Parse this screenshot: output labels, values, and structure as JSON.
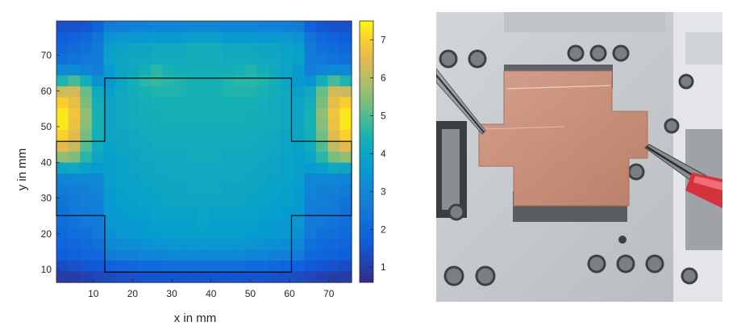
{
  "chart_data": {
    "type": "heatmap",
    "xlabel": "x in mm",
    "ylabel": "y in mm",
    "xlim": [
      0.6,
      75.8
    ],
    "ylim": [
      6.4,
      79.6
    ],
    "x_ticks": [
      10,
      20,
      30,
      40,
      50,
      60,
      70
    ],
    "y_ticks": [
      10,
      20,
      30,
      40,
      50,
      60,
      70
    ],
    "grid": false,
    "colormap": "parula",
    "colorbar": {
      "ticks": [
        1,
        2,
        3,
        4,
        5,
        6,
        7
      ],
      "range": [
        0.6,
        7.5
      ]
    },
    "grid_size": {
      "cols": 25,
      "rows": 24
    },
    "values": [
      [
        1.4,
        1.4,
        1.5,
        1.8,
        2.6,
        2.7,
        2.8,
        2.8,
        2.9,
        2.9,
        2.9,
        3.0,
        3.0,
        3.0,
        2.9,
        2.9,
        2.9,
        2.8,
        2.8,
        2.7,
        2.6,
        1.8,
        1.5,
        1.4,
        1.4
      ],
      [
        1.7,
        1.8,
        2.0,
        2.4,
        3.4,
        3.5,
        3.6,
        3.6,
        3.7,
        3.7,
        3.7,
        3.8,
        3.8,
        3.8,
        3.7,
        3.7,
        3.7,
        3.6,
        3.6,
        3.5,
        3.4,
        2.4,
        2.0,
        1.8,
        1.7
      ],
      [
        2.0,
        2.1,
        2.3,
        2.6,
        3.8,
        3.9,
        4.0,
        4.0,
        4.1,
        4.1,
        4.1,
        4.2,
        4.2,
        4.2,
        4.1,
        4.1,
        4.1,
        4.0,
        4.0,
        3.9,
        3.8,
        2.6,
        2.3,
        2.1,
        2.0
      ],
      [
        2.3,
        2.4,
        2.5,
        2.6,
        3.9,
        4.0,
        4.1,
        4.1,
        4.2,
        4.2,
        4.2,
        4.3,
        4.3,
        4.3,
        4.2,
        4.2,
        4.2,
        4.1,
        4.1,
        4.0,
        3.9,
        2.6,
        2.5,
        2.4,
        2.3
      ],
      [
        3.0,
        3.1,
        2.9,
        2.7,
        3.7,
        4.0,
        4.1,
        4.3,
        4.6,
        4.4,
        4.3,
        4.3,
        4.3,
        4.3,
        4.3,
        4.4,
        4.5,
        4.3,
        4.1,
        4.0,
        3.7,
        2.7,
        2.9,
        3.1,
        3.0
      ],
      [
        4.5,
        4.9,
        4.3,
        3.4,
        3.6,
        4.0,
        4.3,
        4.6,
        4.7,
        4.6,
        4.5,
        4.4,
        4.4,
        4.4,
        4.5,
        4.6,
        4.6,
        4.5,
        4.3,
        4.0,
        3.6,
        3.4,
        4.3,
        4.9,
        4.5
      ],
      [
        6.2,
        6.3,
        5.2,
        4.1,
        3.8,
        4.1,
        4.3,
        4.4,
        4.5,
        4.5,
        4.5,
        4.4,
        4.4,
        4.4,
        4.5,
        4.5,
        4.5,
        4.4,
        4.3,
        4.1,
        3.8,
        4.1,
        5.2,
        6.3,
        6.2
      ],
      [
        7.0,
        6.6,
        5.4,
        4.3,
        4.0,
        4.1,
        4.2,
        4.3,
        4.4,
        4.4,
        4.4,
        4.4,
        4.4,
        4.4,
        4.4,
        4.4,
        4.4,
        4.3,
        4.2,
        4.1,
        4.0,
        4.3,
        5.4,
        6.6,
        7.0
      ],
      [
        7.3,
        6.8,
        5.6,
        4.4,
        4.0,
        4.1,
        4.2,
        4.3,
        4.3,
        4.4,
        4.4,
        4.4,
        4.4,
        4.4,
        4.4,
        4.4,
        4.3,
        4.3,
        4.2,
        4.1,
        4.0,
        4.4,
        5.6,
        6.8,
        7.3
      ],
      [
        7.3,
        6.7,
        5.5,
        4.4,
        4.0,
        4.1,
        4.2,
        4.2,
        4.3,
        4.3,
        4.3,
        4.3,
        4.3,
        4.3,
        4.3,
        4.3,
        4.3,
        4.2,
        4.2,
        4.1,
        4.0,
        4.4,
        5.5,
        6.7,
        7.3
      ],
      [
        7.0,
        6.5,
        5.3,
        4.3,
        4.0,
        4.0,
        4.1,
        4.2,
        4.2,
        4.3,
        4.3,
        4.3,
        4.3,
        4.3,
        4.3,
        4.3,
        4.2,
        4.2,
        4.1,
        4.0,
        4.0,
        4.3,
        5.3,
        6.5,
        7.0
      ],
      [
        6.5,
        6.1,
        5.0,
        4.2,
        3.9,
        4.0,
        4.1,
        4.1,
        4.2,
        4.2,
        4.2,
        4.2,
        4.2,
        4.2,
        4.2,
        4.2,
        4.2,
        4.1,
        4.1,
        4.0,
        3.9,
        4.2,
        5.0,
        6.1,
        6.5
      ],
      [
        5.6,
        5.4,
        4.6,
        4.0,
        3.8,
        3.9,
        4.0,
        4.1,
        4.1,
        4.1,
        4.1,
        4.2,
        4.2,
        4.2,
        4.1,
        4.1,
        4.1,
        4.1,
        4.0,
        3.9,
        3.8,
        4.0,
        4.6,
        5.4,
        5.6
      ],
      [
        4.0,
        4.1,
        3.8,
        3.6,
        3.8,
        3.9,
        4.0,
        4.0,
        4.1,
        4.1,
        4.1,
        4.1,
        4.1,
        4.1,
        4.1,
        4.1,
        4.1,
        4.0,
        4.0,
        3.9,
        3.8,
        3.6,
        3.8,
        4.1,
        4.0
      ],
      [
        2.9,
        3.0,
        3.0,
        3.0,
        3.8,
        3.9,
        3.9,
        4.0,
        4.0,
        4.1,
        4.1,
        4.1,
        4.1,
        4.1,
        4.1,
        4.1,
        4.0,
        4.0,
        3.9,
        3.9,
        3.8,
        3.0,
        3.0,
        3.0,
        2.9
      ],
      [
        2.6,
        2.7,
        2.8,
        2.9,
        3.7,
        3.8,
        3.9,
        3.9,
        4.0,
        4.0,
        4.0,
        4.1,
        4.1,
        4.1,
        4.0,
        4.0,
        4.0,
        3.9,
        3.9,
        3.8,
        3.7,
        2.9,
        2.8,
        2.7,
        2.6
      ],
      [
        2.4,
        2.6,
        2.7,
        2.8,
        3.7,
        3.8,
        3.8,
        3.9,
        3.9,
        4.0,
        4.0,
        4.0,
        4.0,
        4.0,
        4.0,
        4.0,
        3.9,
        3.9,
        3.8,
        3.8,
        3.7,
        2.8,
        2.7,
        2.6,
        2.4
      ],
      [
        2.3,
        2.5,
        2.6,
        2.7,
        3.6,
        3.7,
        3.8,
        3.8,
        3.9,
        3.9,
        3.9,
        3.9,
        4.0,
        3.9,
        3.9,
        3.9,
        3.9,
        3.8,
        3.8,
        3.7,
        3.6,
        2.7,
        2.6,
        2.5,
        2.3
      ],
      [
        2.2,
        2.4,
        2.5,
        2.6,
        3.5,
        3.6,
        3.7,
        3.7,
        3.8,
        3.8,
        3.8,
        3.8,
        3.9,
        3.8,
        3.8,
        3.8,
        3.8,
        3.7,
        3.7,
        3.6,
        3.5,
        2.6,
        2.5,
        2.4,
        2.2
      ],
      [
        2.1,
        2.2,
        2.3,
        2.5,
        3.3,
        3.5,
        3.6,
        3.7,
        3.7,
        3.8,
        3.8,
        3.8,
        3.8,
        3.8,
        3.8,
        3.8,
        3.7,
        3.7,
        3.6,
        3.5,
        3.3,
        2.5,
        2.3,
        2.2,
        2.1
      ],
      [
        1.9,
        2.0,
        2.1,
        2.3,
        3.0,
        3.2,
        3.3,
        3.4,
        3.5,
        3.5,
        3.5,
        3.5,
        3.6,
        3.5,
        3.5,
        3.5,
        3.5,
        3.4,
        3.3,
        3.2,
        3.0,
        2.3,
        2.1,
        2.0,
        1.9
      ],
      [
        1.7,
        1.8,
        1.9,
        2.0,
        2.6,
        2.7,
        2.8,
        2.9,
        2.9,
        3.0,
        3.0,
        3.0,
        3.0,
        3.0,
        3.0,
        3.0,
        2.9,
        2.9,
        2.8,
        2.7,
        2.6,
        2.0,
        1.9,
        1.8,
        1.7
      ],
      [
        1.3,
        1.4,
        1.5,
        1.6,
        1.8,
        1.9,
        2.0,
        2.1,
        2.1,
        2.2,
        2.2,
        2.2,
        2.2,
        2.2,
        2.2,
        2.2,
        2.1,
        2.1,
        2.0,
        1.9,
        1.8,
        1.6,
        1.5,
        1.4,
        1.3
      ],
      [
        1.0,
        1.0,
        1.1,
        1.2,
        1.3,
        1.4,
        1.4,
        1.5,
        1.5,
        1.5,
        1.5,
        1.5,
        1.5,
        1.5,
        1.5,
        1.5,
        1.5,
        1.5,
        1.4,
        1.4,
        1.3,
        1.2,
        1.1,
        1.0,
        1.0
      ]
    ],
    "annotations": [
      {
        "type": "outline",
        "points": [
          [
            12.9,
            9.3
          ],
          [
            60.5,
            9.3
          ],
          [
            60.5,
            25.1
          ],
          [
            75.8,
            25.1
          ],
          [
            75.8,
            45.9
          ],
          [
            60.5,
            45.9
          ],
          [
            60.5,
            63.6
          ],
          [
            12.9,
            63.6
          ],
          [
            12.9,
            45.9
          ],
          [
            0.6,
            45.9
          ],
          [
            0.6,
            25.1
          ],
          [
            12.9,
            25.1
          ]
        ]
      }
    ]
  },
  "photo": {
    "subject": "copper-sample-on-stage",
    "colors": {
      "stage": "#c4c7cb",
      "copper": "#c88f7a",
      "probe_grip": "#d4323d"
    }
  }
}
